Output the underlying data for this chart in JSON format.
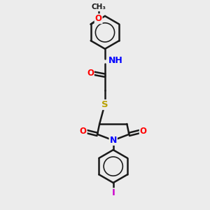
{
  "bg_color": "#ececec",
  "bond_color": "#1a1a1a",
  "bond_width": 1.8,
  "atom_colors": {
    "O": "#ff0000",
    "N": "#0000ff",
    "S": "#b8a000",
    "I": "#cc00cc",
    "C": "#1a1a1a",
    "H": "#40a0a0"
  },
  "font_size": 8.5,
  "fig_size": [
    3.0,
    3.0
  ],
  "dpi": 100
}
